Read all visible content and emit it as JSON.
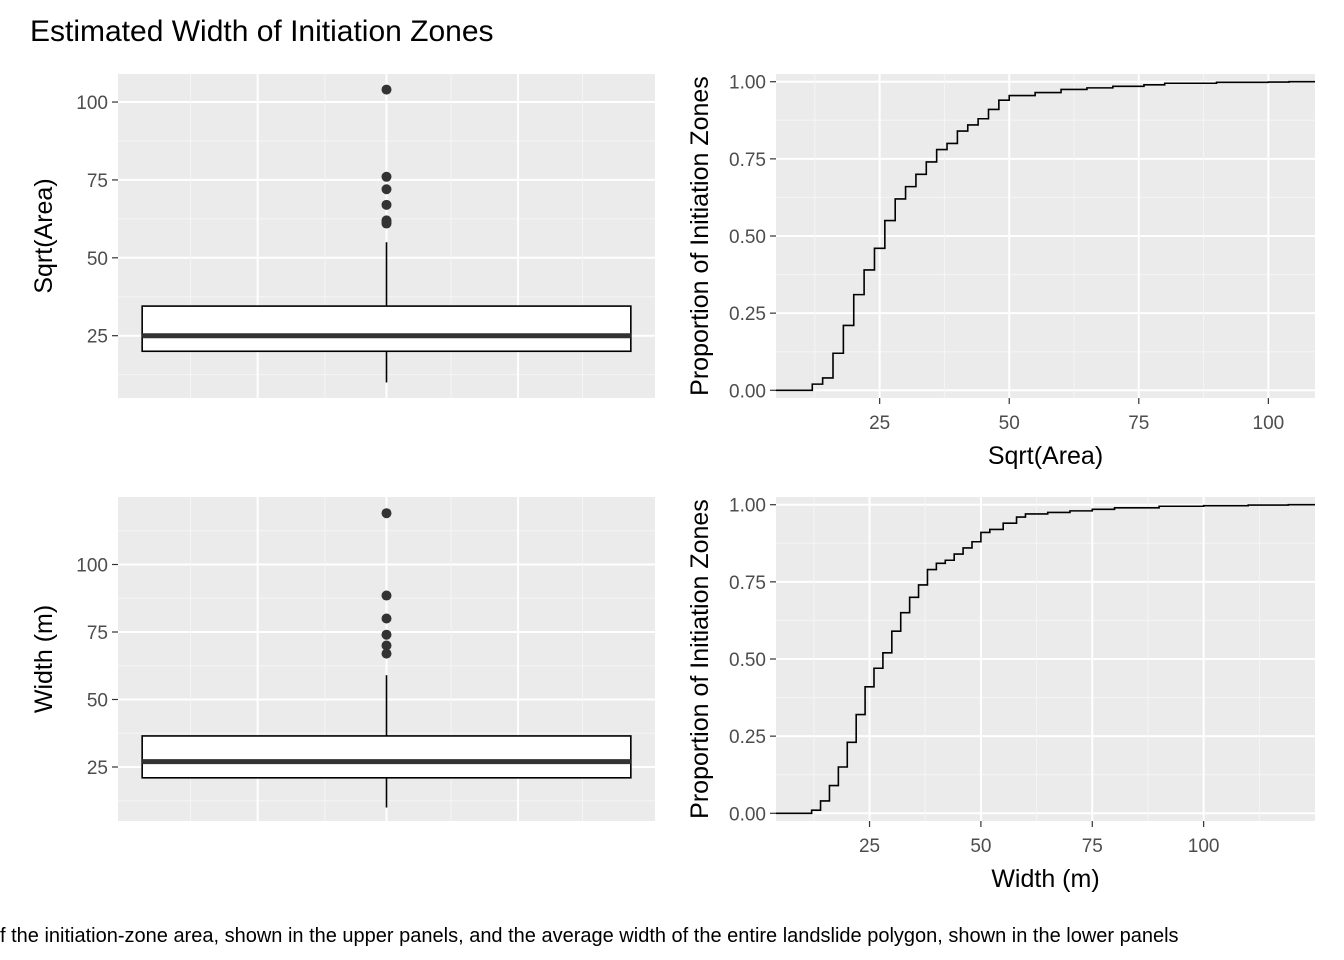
{
  "figure": {
    "title": "Estimated Width of Initiation Zones",
    "caption": "f the initiation-zone area, shown in the upper panels, and the average width of the entire landslide polygon, shown in the lower panels"
  },
  "colors": {
    "panel_bg": "#ebebeb",
    "grid_major": "#ffffff",
    "grid_minor": "#f5f5f5",
    "line": "#000000",
    "outlier": "#333333",
    "box_fill": "#ffffff",
    "tick_text": "#4d4d4d"
  },
  "chart_data": [
    {
      "type": "box",
      "panel": "top-left",
      "xlabel": "",
      "ylabel": "Sqrt(Area)",
      "ylim": [
        5,
        109
      ],
      "yticks": [
        25,
        50,
        75,
        100
      ],
      "stats": {
        "lower_whisker": 10,
        "q1": 20,
        "median": 25,
        "q3": 34.5,
        "upper_whisker": 55
      },
      "outliers": [
        61,
        61.5,
        62,
        67,
        72,
        76,
        104
      ]
    },
    {
      "type": "line",
      "subtype": "ecdf",
      "panel": "top-right",
      "xlabel": "Sqrt(Area)",
      "ylabel": "Proportion of Initiation Zones",
      "xlim": [
        5,
        109
      ],
      "ylim": [
        -0.025,
        1.025
      ],
      "xticks": [
        25,
        50,
        75,
        100
      ],
      "yticks": [
        "0.00",
        "0.25",
        "0.50",
        "0.75",
        "1.00"
      ],
      "x": [
        5,
        10,
        12,
        14,
        16,
        18,
        20,
        22,
        24,
        26,
        28,
        30,
        32,
        34,
        36,
        38,
        40,
        42,
        44,
        46,
        48,
        50,
        55,
        60,
        65,
        70,
        76,
        80,
        90,
        100,
        104,
        109
      ],
      "y": [
        0,
        0,
        0.02,
        0.04,
        0.12,
        0.21,
        0.31,
        0.39,
        0.46,
        0.55,
        0.62,
        0.66,
        0.7,
        0.74,
        0.78,
        0.8,
        0.84,
        0.86,
        0.88,
        0.91,
        0.94,
        0.955,
        0.965,
        0.975,
        0.98,
        0.985,
        0.99,
        0.995,
        0.998,
        0.999,
        1.0,
        1.0
      ]
    },
    {
      "type": "box",
      "panel": "bottom-left",
      "xlabel": "",
      "ylabel": "Width (m)",
      "ylim": [
        5,
        125
      ],
      "yticks": [
        25,
        50,
        75,
        100
      ],
      "stats": {
        "lower_whisker": 10,
        "q1": 21,
        "median": 27,
        "q3": 36.5,
        "upper_whisker": 59
      },
      "outliers": [
        67,
        70,
        74,
        80,
        88.5,
        119
      ]
    },
    {
      "type": "line",
      "subtype": "ecdf",
      "panel": "bottom-right",
      "xlabel": "Width (m)",
      "ylabel": "Proportion of Initiation Zones",
      "xlim": [
        4,
        125
      ],
      "ylim": [
        -0.025,
        1.025
      ],
      "xticks": [
        25,
        50,
        75,
        100
      ],
      "yticks": [
        "0.00",
        "0.25",
        "0.50",
        "0.75",
        "1.00"
      ],
      "x": [
        4,
        10,
        12,
        14,
        16,
        18,
        20,
        22,
        24,
        26,
        28,
        30,
        32,
        34,
        36,
        38,
        40,
        42,
        44,
        46,
        48,
        50,
        52,
        55,
        58,
        60,
        65,
        70,
        75,
        80,
        90,
        100,
        110,
        119,
        125
      ],
      "y": [
        0,
        0,
        0.01,
        0.04,
        0.09,
        0.15,
        0.23,
        0.32,
        0.41,
        0.47,
        0.52,
        0.59,
        0.65,
        0.7,
        0.74,
        0.79,
        0.81,
        0.82,
        0.84,
        0.86,
        0.88,
        0.91,
        0.92,
        0.94,
        0.96,
        0.97,
        0.975,
        0.98,
        0.985,
        0.99,
        0.995,
        0.997,
        0.999,
        1.0,
        1.0
      ]
    }
  ]
}
